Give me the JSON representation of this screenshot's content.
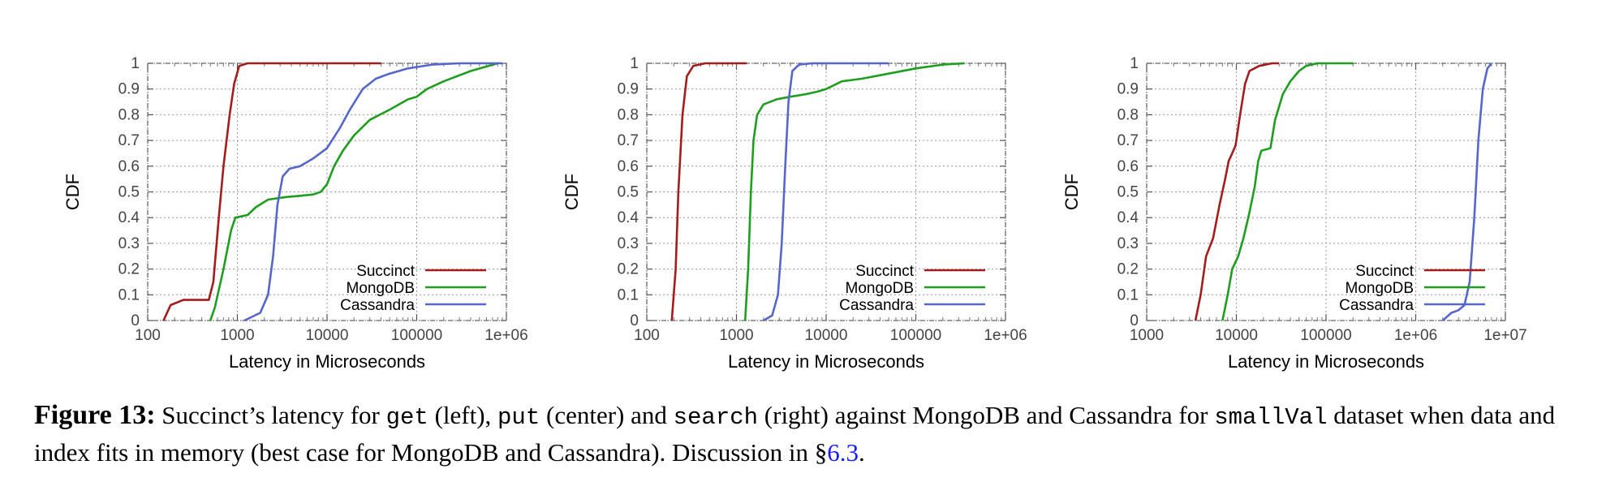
{
  "chart_data": [
    {
      "type": "line",
      "title": "",
      "xlabel": "Latency in Microseconds",
      "ylabel": "CDF",
      "xscale": "log",
      "xlim": [
        100,
        1000000
      ],
      "ylim": [
        0,
        1
      ],
      "xticks": [
        "100",
        "1000",
        "10000",
        "100000",
        "1e+06"
      ],
      "yticks": [
        "0",
        "0.1",
        "0.2",
        "0.3",
        "0.4",
        "0.5",
        "0.6",
        "0.7",
        "0.8",
        "0.9",
        "1"
      ],
      "grid": true,
      "legend_position": "bottom-right",
      "series": [
        {
          "name": "Succinct",
          "color": "#a51c1c",
          "points": [
            [
              150,
              0
            ],
            [
              180,
              0.06
            ],
            [
              250,
              0.08
            ],
            [
              480,
              0.08
            ],
            [
              540,
              0.15
            ],
            [
              620,
              0.4
            ],
            [
              700,
              0.6
            ],
            [
              820,
              0.8
            ],
            [
              920,
              0.92
            ],
            [
              1050,
              0.99
            ],
            [
              1300,
              1
            ],
            [
              40000,
              1
            ]
          ]
        },
        {
          "name": "MongoDB",
          "color": "#1e9e1e",
          "points": [
            [
              500,
              0
            ],
            [
              560,
              0.05
            ],
            [
              700,
              0.2
            ],
            [
              850,
              0.35
            ],
            [
              950,
              0.4
            ],
            [
              1300,
              0.41
            ],
            [
              1600,
              0.44
            ],
            [
              2200,
              0.47
            ],
            [
              3500,
              0.48
            ],
            [
              5000,
              0.485
            ],
            [
              7000,
              0.49
            ],
            [
              8500,
              0.5
            ],
            [
              10000,
              0.53
            ],
            [
              12000,
              0.6
            ],
            [
              15000,
              0.66
            ],
            [
              20000,
              0.72
            ],
            [
              30000,
              0.78
            ],
            [
              50000,
              0.82
            ],
            [
              80000,
              0.86
            ],
            [
              100000,
              0.87
            ],
            [
              130000,
              0.9
            ],
            [
              200000,
              0.93
            ],
            [
              400000,
              0.97
            ],
            [
              800000,
              1
            ]
          ]
        },
        {
          "name": "Cassandra",
          "color": "#5566cc",
          "points": [
            [
              1200,
              0
            ],
            [
              1800,
              0.03
            ],
            [
              2200,
              0.1
            ],
            [
              2500,
              0.25
            ],
            [
              2800,
              0.45
            ],
            [
              3200,
              0.56
            ],
            [
              3800,
              0.59
            ],
            [
              5000,
              0.6
            ],
            [
              7000,
              0.63
            ],
            [
              10000,
              0.67
            ],
            [
              14000,
              0.75
            ],
            [
              18000,
              0.82
            ],
            [
              25000,
              0.9
            ],
            [
              35000,
              0.94
            ],
            [
              50000,
              0.96
            ],
            [
              80000,
              0.98
            ],
            [
              150000,
              0.995
            ],
            [
              300000,
              1
            ],
            [
              900000,
              1
            ]
          ]
        }
      ]
    },
    {
      "type": "line",
      "title": "",
      "xlabel": "Latency in Microseconds",
      "ylabel": "CDF",
      "xscale": "log",
      "xlim": [
        100,
        1000000
      ],
      "ylim": [
        0,
        1
      ],
      "xticks": [
        "100",
        "1000",
        "10000",
        "100000",
        "1e+06"
      ],
      "yticks": [
        "0",
        "0.1",
        "0.2",
        "0.3",
        "0.4",
        "0.5",
        "0.6",
        "0.7",
        "0.8",
        "0.9",
        "1"
      ],
      "grid": true,
      "legend_position": "bottom-right",
      "series": [
        {
          "name": "Succinct",
          "color": "#a51c1c",
          "points": [
            [
              190,
              0
            ],
            [
              210,
              0.2
            ],
            [
              225,
              0.5
            ],
            [
              250,
              0.8
            ],
            [
              280,
              0.95
            ],
            [
              330,
              0.99
            ],
            [
              450,
              1
            ],
            [
              1300,
              1
            ]
          ]
        },
        {
          "name": "MongoDB",
          "color": "#1e9e1e",
          "points": [
            [
              1250,
              0
            ],
            [
              1350,
              0.2
            ],
            [
              1450,
              0.5
            ],
            [
              1550,
              0.7
            ],
            [
              1700,
              0.8
            ],
            [
              2000,
              0.84
            ],
            [
              2800,
              0.86
            ],
            [
              4000,
              0.87
            ],
            [
              6000,
              0.88
            ],
            [
              8000,
              0.89
            ],
            [
              10000,
              0.9
            ],
            [
              15000,
              0.93
            ],
            [
              25000,
              0.94
            ],
            [
              50000,
              0.96
            ],
            [
              100000,
              0.98
            ],
            [
              200000,
              0.995
            ],
            [
              350000,
              1
            ]
          ]
        },
        {
          "name": "Cassandra",
          "color": "#5566cc",
          "points": [
            [
              2000,
              0
            ],
            [
              2500,
              0.02
            ],
            [
              2900,
              0.1
            ],
            [
              3200,
              0.3
            ],
            [
              3500,
              0.6
            ],
            [
              3800,
              0.85
            ],
            [
              4200,
              0.97
            ],
            [
              5000,
              0.995
            ],
            [
              7000,
              1
            ],
            [
              50000,
              1
            ]
          ]
        }
      ]
    },
    {
      "type": "line",
      "title": "",
      "xlabel": "Latency in Microseconds",
      "ylabel": "CDF",
      "xscale": "log",
      "xlim": [
        1000,
        10000000
      ],
      "ylim": [
        0,
        1
      ],
      "xticks": [
        "1000",
        "10000",
        "100000",
        "1e+06",
        "1e+07"
      ],
      "yticks": [
        "0",
        "0.1",
        "0.2",
        "0.3",
        "0.4",
        "0.5",
        "0.6",
        "0.7",
        "0.8",
        "0.9",
        "1"
      ],
      "grid": true,
      "legend_position": "bottom-right",
      "series": [
        {
          "name": "Succinct",
          "color": "#a51c1c",
          "points": [
            [
              3500,
              0
            ],
            [
              4000,
              0.1
            ],
            [
              4600,
              0.25
            ],
            [
              5500,
              0.32
            ],
            [
              6500,
              0.45
            ],
            [
              7500,
              0.55
            ],
            [
              8200,
              0.62
            ],
            [
              9000,
              0.65
            ],
            [
              9800,
              0.68
            ],
            [
              11000,
              0.8
            ],
            [
              12500,
              0.92
            ],
            [
              14000,
              0.97
            ],
            [
              18000,
              0.99
            ],
            [
              25000,
              1
            ],
            [
              30000,
              1
            ]
          ]
        },
        {
          "name": "MongoDB",
          "color": "#1e9e1e",
          "points": [
            [
              7000,
              0
            ],
            [
              8000,
              0.1
            ],
            [
              9000,
              0.2
            ],
            [
              10500,
              0.25
            ],
            [
              12000,
              0.32
            ],
            [
              14000,
              0.42
            ],
            [
              16000,
              0.52
            ],
            [
              17500,
              0.62
            ],
            [
              19000,
              0.66
            ],
            [
              24000,
              0.67
            ],
            [
              27000,
              0.78
            ],
            [
              33000,
              0.88
            ],
            [
              40000,
              0.93
            ],
            [
              50000,
              0.97
            ],
            [
              60000,
              0.99
            ],
            [
              80000,
              1
            ],
            [
              200000,
              1
            ]
          ]
        },
        {
          "name": "Cassandra",
          "color": "#5566cc",
          "points": [
            [
              2000000,
              0
            ],
            [
              2500000,
              0.03
            ],
            [
              3000000,
              0.04
            ],
            [
              3500000,
              0.06
            ],
            [
              4000000,
              0.15
            ],
            [
              4500000,
              0.4
            ],
            [
              5000000,
              0.7
            ],
            [
              5600000,
              0.9
            ],
            [
              6300000,
              0.98
            ],
            [
              7000000,
              1
            ]
          ]
        }
      ]
    }
  ],
  "caption": {
    "figure_label": "Figure 13:",
    "text_1": " Succinct’s latency for ",
    "code_get": "get",
    "text_2": " (left), ",
    "code_put": "put",
    "text_3": " (center) and ",
    "code_search": "search",
    "text_4": " (right) against MongoDB and Cassandra for ",
    "code_smallval": "smallVal",
    "text_5": " dataset when data and index fits in memory (best case for MongoDB and Cassandra). Discussion in §",
    "link_section": "6.3",
    "text_6": "."
  }
}
